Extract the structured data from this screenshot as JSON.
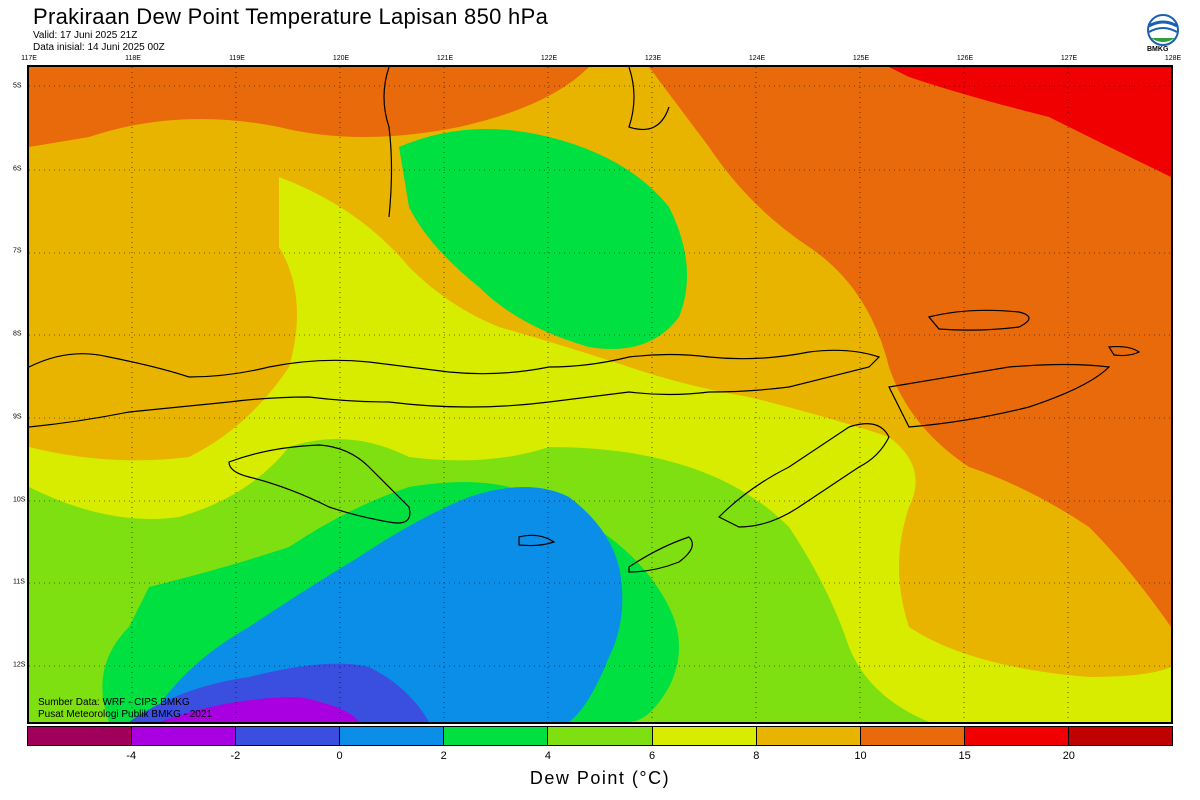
{
  "title": "Prakiraan Dew Point Temperature Lapisan 850 hPa",
  "valid": "Valid: 17 Juni 2025 21Z",
  "init": "Data inisial: 14 Juni 2025 00Z",
  "logo_text": "BMKG",
  "lon_labels": [
    "117E",
    "118E",
    "119E",
    "120E",
    "121E",
    "122E",
    "123E",
    "124E",
    "125E",
    "126E",
    "127E",
    "128E"
  ],
  "lat_labels": [
    "5S",
    "6S",
    "7S",
    "8S",
    "9S",
    "10S",
    "11S",
    "12S"
  ],
  "credit_source": "Sumber Data: WRF - CIPS BMKG",
  "credit_org": "Pusat Meteorologi Publik BMKG - 2021",
  "colorbar": {
    "title": "Dew Point (°C)",
    "colors": [
      "#a0005a",
      "#a800e0",
      "#3a4ee0",
      "#0a8ee8",
      "#00e040",
      "#7ee010",
      "#d8ec00",
      "#e8b400",
      "#e86a0a",
      "#f00000",
      "#c00000"
    ],
    "ticks": [
      "-4",
      "-2",
      "0",
      "2",
      "4",
      "6",
      "8",
      "10",
      "15",
      "20"
    ]
  },
  "colors": {
    "red": "#f00000",
    "orange": "#e86a0a",
    "amber": "#e8b400",
    "yellow": "#d8ec00",
    "lime": "#7ee010",
    "green": "#00e040",
    "blue": "#0a8ee8",
    "indigo": "#3a4ee0",
    "purple": "#a800e0"
  }
}
